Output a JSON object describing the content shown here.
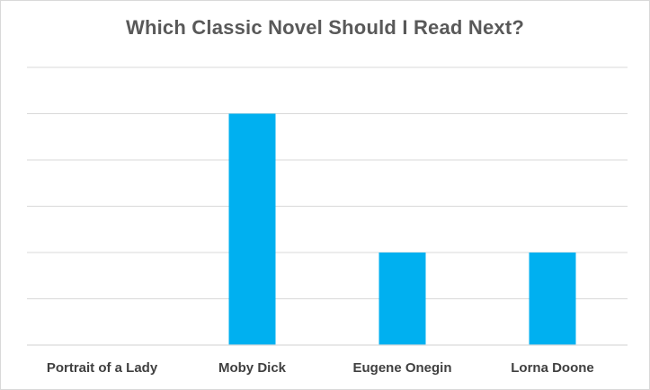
{
  "chart_data": {
    "type": "bar",
    "title": "Which Classic Novel Should I Read Next?",
    "xlabel": "",
    "ylabel": "",
    "categories": [
      "Portrait of a Lady",
      "Moby Dick",
      "Eugene Onegin",
      "Lorna Doone"
    ],
    "values": [
      0,
      5,
      2,
      2
    ],
    "ylim": [
      0,
      6
    ],
    "grid": true,
    "legend": "none",
    "bar_color": "#00b0f0",
    "gridline_color": "#d9d9d9"
  }
}
